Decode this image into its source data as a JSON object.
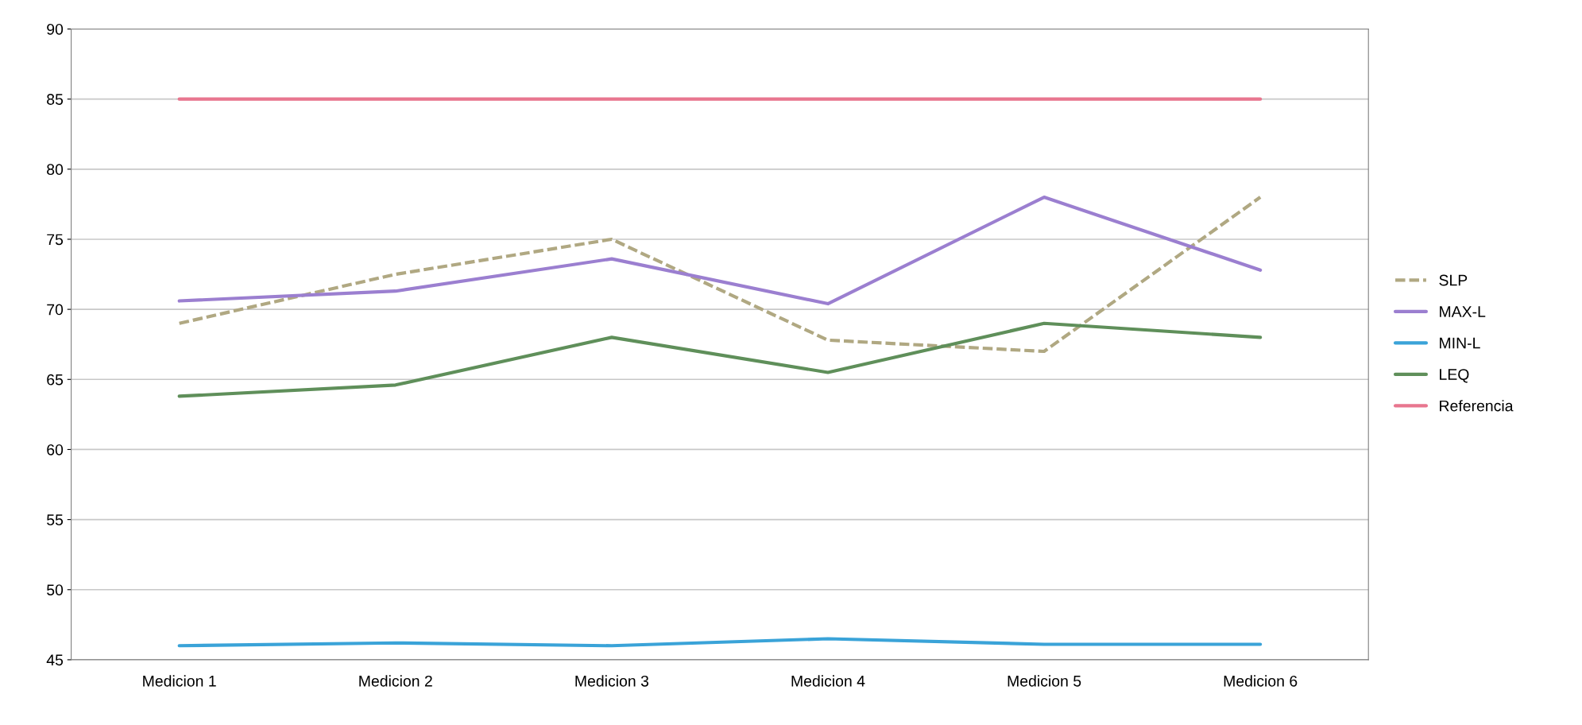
{
  "chart_data": {
    "type": "line",
    "categories": [
      "Medicion 1",
      "Medicion 2",
      "Medicion 3",
      "Medicion 4",
      "Medicion 5",
      "Medicion 6"
    ],
    "series": [
      {
        "name": "SLP",
        "color": "#b0a882",
        "line_style": "dashed",
        "values": [
          69,
          72.5,
          75,
          67.8,
          67,
          78
        ]
      },
      {
        "name": "MAX-L",
        "color": "#9b7fd0",
        "values": [
          70.6,
          71.3,
          73.6,
          70.4,
          78,
          72.8
        ]
      },
      {
        "name": "MIN-L",
        "color": "#3aa3d8",
        "values": [
          46,
          46.2,
          46,
          46.5,
          46.1,
          46.1
        ]
      },
      {
        "name": "LEQ",
        "color": "#5f8f5a",
        "values": [
          63.8,
          64.6,
          68,
          65.5,
          69,
          68
        ]
      },
      {
        "name": "Referencia",
        "color": "#e8768f",
        "values": [
          85,
          85,
          85,
          85,
          85,
          85
        ]
      }
    ],
    "ylim": [
      45,
      90
    ],
    "yticks": [
      45,
      50,
      55,
      60,
      65,
      70,
      75,
      80,
      85,
      90
    ],
    "grid": "y",
    "legend": "right",
    "line_style": "solid",
    "marker": "none"
  }
}
